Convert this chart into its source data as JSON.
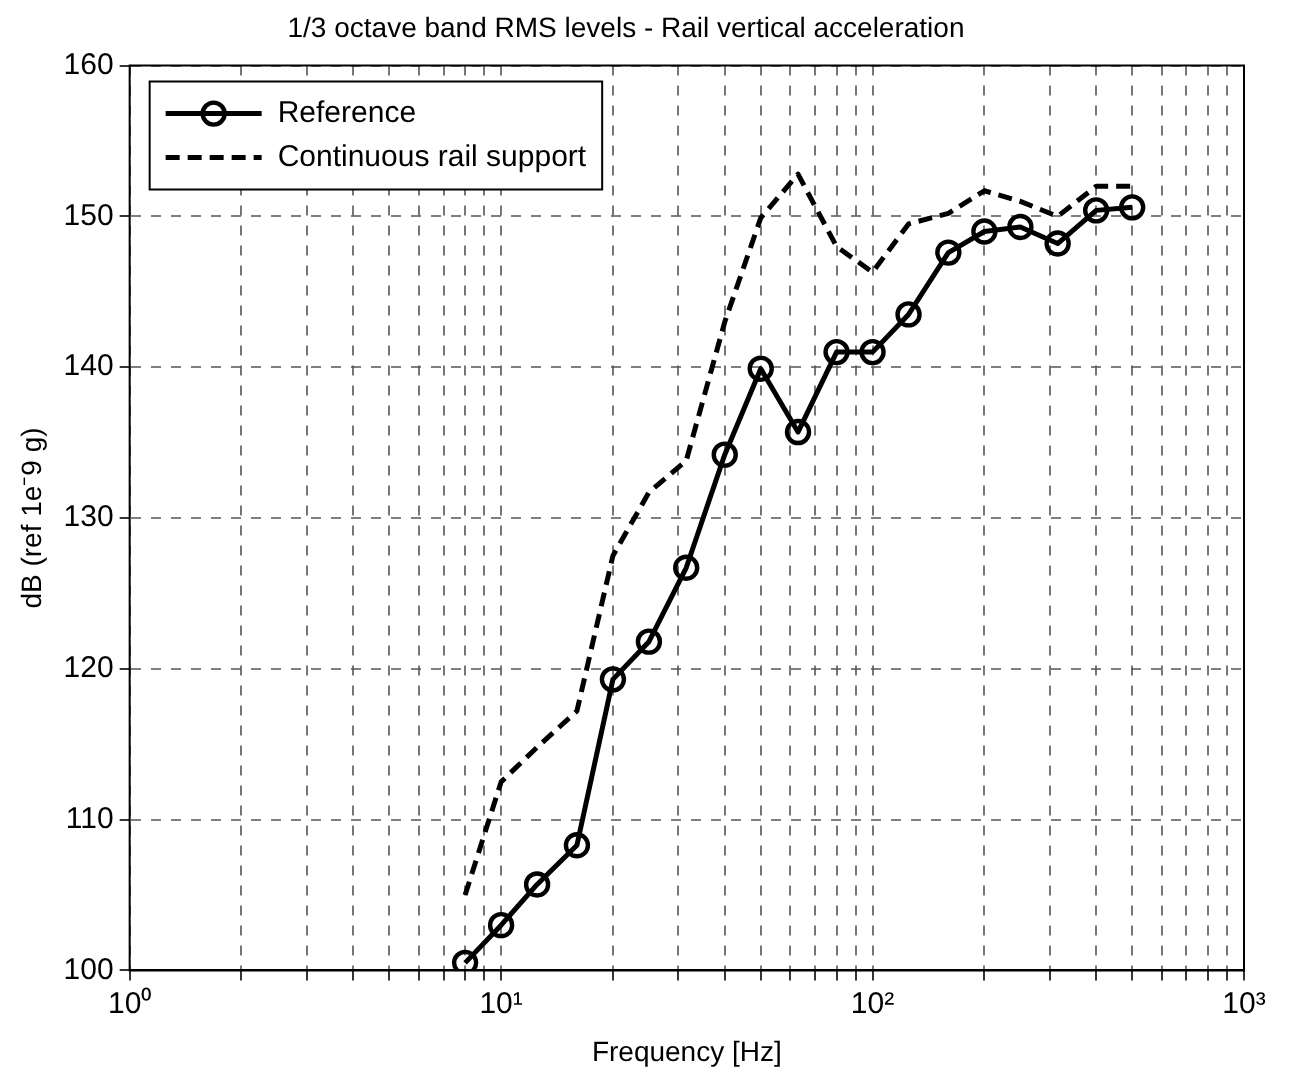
{
  "chart_data": {
    "type": "line",
    "title": "1/3 octave band RMS levels - Rail vertical acceleration",
    "xlabel": "Frequency [Hz]",
    "ylabel": "dB (ref 1e⁻9 g)",
    "x": [
      8,
      10,
      12.5,
      16,
      20,
      25,
      31.5,
      40,
      50,
      63,
      80,
      100,
      125,
      160,
      200,
      250,
      315,
      400,
      500
    ],
    "series": [
      {
        "name": "Reference",
        "color": "#000000",
        "marker": "circle",
        "line_style": "solid",
        "values": [
          100.5,
          103,
          105.7,
          108.3,
          119.3,
          121.8,
          126.7,
          134.2,
          139.9,
          135.7,
          141,
          141,
          143.5,
          147.6,
          149,
          149.3,
          148.2,
          150.4,
          150.6
        ]
      },
      {
        "name": "Continuous rail support",
        "color": "#000000",
        "marker": "none",
        "line_style": "dashed",
        "values": [
          105,
          112.5,
          114.8,
          117.2,
          127.5,
          131.7,
          133.8,
          143,
          149.9,
          152.8,
          148,
          146.3,
          149.5,
          150.2,
          151.7,
          151,
          150,
          152,
          152
        ]
      }
    ],
    "log": "x",
    "xlim": [
      1,
      1000
    ],
    "xticks": [
      {
        "value": 1,
        "label": "10⁰"
      },
      {
        "value": 2,
        "label": null
      },
      {
        "value": 3,
        "label": null
      },
      {
        "value": 4,
        "label": null
      },
      {
        "value": 5,
        "label": null
      },
      {
        "value": 6,
        "label": null
      },
      {
        "value": 7,
        "label": null
      },
      {
        "value": 8,
        "label": null
      },
      {
        "value": 9,
        "label": null
      },
      {
        "value": 10,
        "label": "10¹"
      },
      {
        "value": 20,
        "label": null
      },
      {
        "value": 30,
        "label": null
      },
      {
        "value": 40,
        "label": null
      },
      {
        "value": 50,
        "label": null
      },
      {
        "value": 60,
        "label": null
      },
      {
        "value": 70,
        "label": null
      },
      {
        "value": 80,
        "label": null
      },
      {
        "value": 90,
        "label": null
      },
      {
        "value": 100,
        "label": "10²"
      },
      {
        "value": 200,
        "label": null
      },
      {
        "value": 300,
        "label": null
      },
      {
        "value": 400,
        "label": null
      },
      {
        "value": 500,
        "label": null
      },
      {
        "value": 600,
        "label": null
      },
      {
        "value": 700,
        "label": null
      },
      {
        "value": 800,
        "label": null
      },
      {
        "value": 900,
        "label": null
      },
      {
        "value": 1000,
        "label": "10³"
      }
    ],
    "ylim": [
      100,
      160
    ],
    "yticks": [
      100,
      110,
      120,
      130,
      140,
      150,
      160
    ],
    "grid": true,
    "legend": "top left"
  }
}
